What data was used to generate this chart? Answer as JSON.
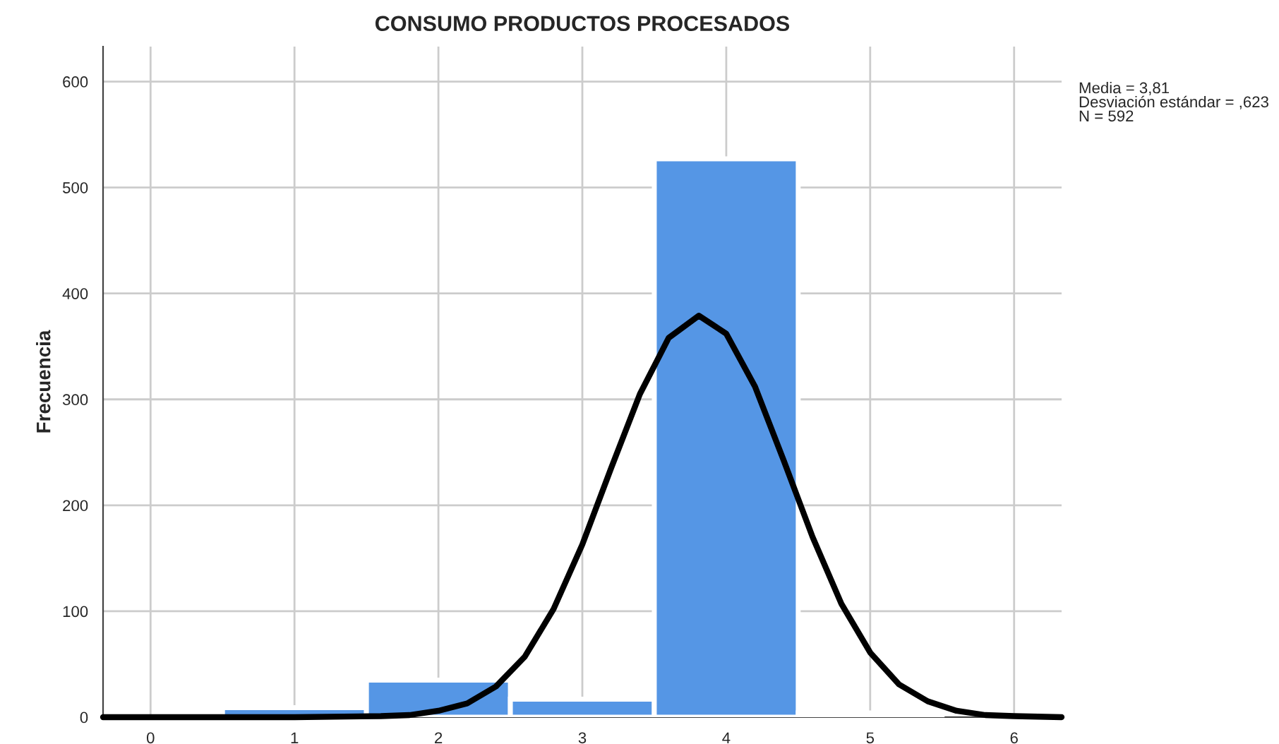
{
  "chart_data": {
    "type": "histogram",
    "title": "CONSUMO PRODUCTOS PROCESADOS",
    "ylabel": "Frecuencia",
    "series": [
      {
        "color": "#5596e5",
        "bins": [
          0.5,
          1.5,
          2.5,
          3.5,
          4.5,
          5.5
        ],
        "values": [
          9,
          35,
          17,
          527,
          4
        ]
      },
      {
        "type": "line",
        "color": "#000000",
        "x": [
          -0.33,
          1.0,
          1.6,
          1.8,
          2.0,
          2.2,
          2.4,
          2.6,
          2.8,
          3.0,
          3.2,
          3.4,
          3.6,
          3.81,
          4.0,
          4.2,
          4.4,
          4.6,
          4.8,
          5.0,
          5.2,
          5.4,
          5.6,
          5.8,
          6.0,
          6.33
        ],
        "values": [
          0,
          0,
          1,
          2,
          6,
          13,
          29,
          57,
          102,
          163,
          235,
          305,
          358,
          379,
          362,
          312,
          242,
          170,
          107,
          61,
          31,
          15,
          6,
          2,
          1,
          0
        ]
      }
    ],
    "annotations": [
      "Media = 3,81\nDesviación estándar = ,623\nN = 592"
    ],
    "xlim": [
      -0.33,
      6.33
    ],
    "ylim": [
      0,
      633
    ],
    "xticks": [
      0,
      1,
      2,
      3,
      4,
      5,
      6
    ],
    "yticks": [
      0,
      100,
      200,
      300,
      400,
      500,
      600
    ],
    "grid": true,
    "legend": false
  }
}
